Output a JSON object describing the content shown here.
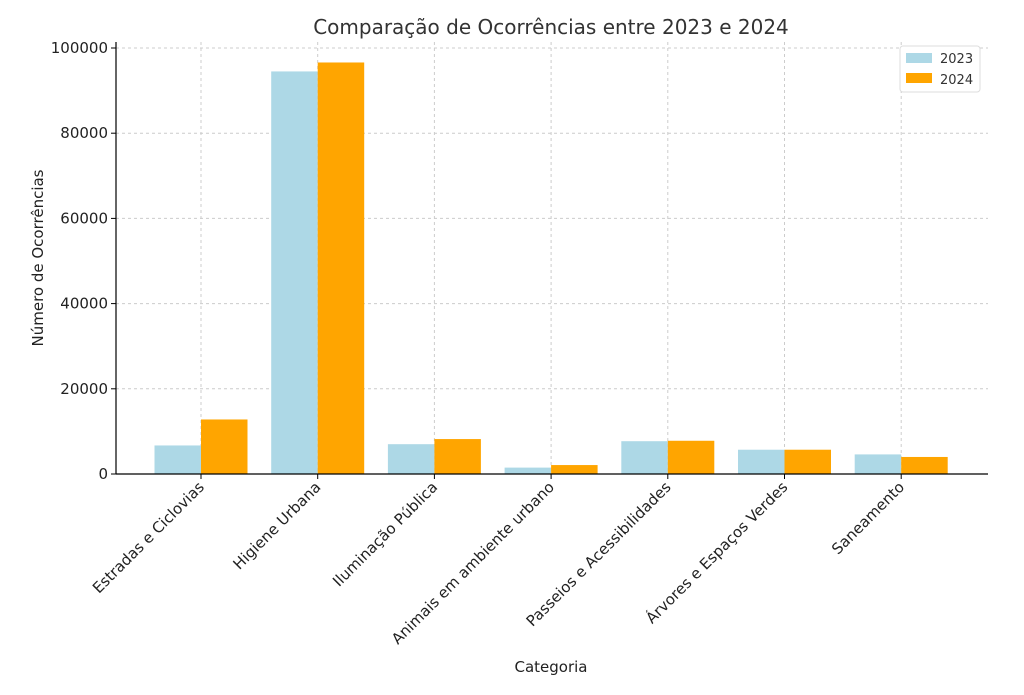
{
  "chart_data": {
    "type": "bar",
    "title": "Comparação de Ocorrências entre 2023 e 2024",
    "xlabel": "Categoria",
    "ylabel": "Número de Ocorrências",
    "ylim": [
      0,
      100000
    ],
    "yticks": [
      0,
      20000,
      40000,
      60000,
      80000,
      100000
    ],
    "grid": true,
    "legend_position": "top-right",
    "categories": [
      "Estradas e Ciclovias",
      "Higiene Urbana",
      "Iluminação Pública",
      "Animais em ambiente urbano",
      "Passeios e Acessibilidades",
      "Árvores e Espaços Verdes",
      "Saneamento"
    ],
    "series": [
      {
        "name": "2023",
        "color": "#add8e6",
        "values": [
          6700,
          94500,
          7000,
          1500,
          7700,
          5700,
          4600
        ]
      },
      {
        "name": "2024",
        "color": "#ffa500",
        "values": [
          12800,
          96600,
          8200,
          2100,
          7800,
          5700,
          4000
        ]
      }
    ]
  }
}
